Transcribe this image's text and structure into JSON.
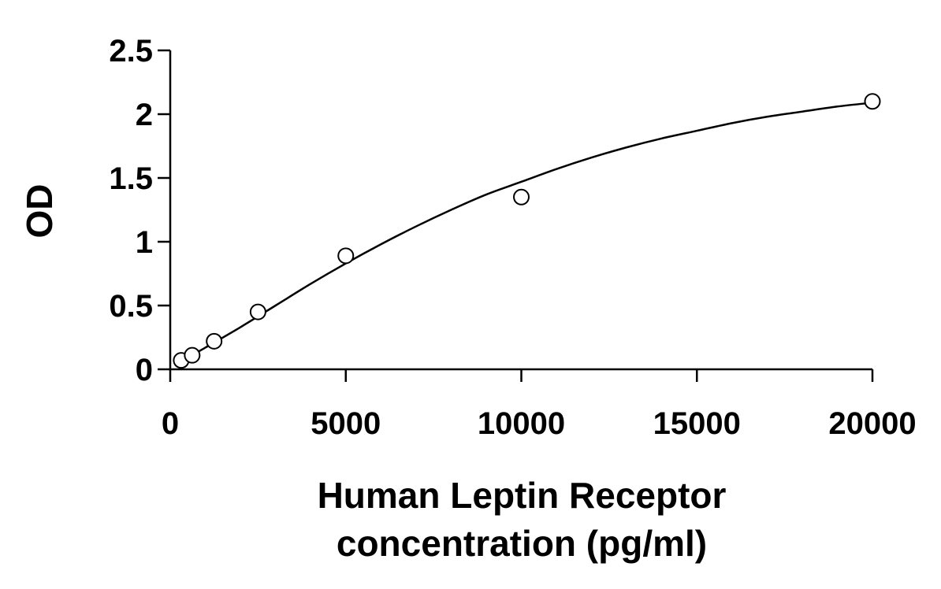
{
  "chart_data": {
    "type": "scatter",
    "title": "",
    "xlabel": [
      "Human Leptin Receptor",
      "concentration (pg/ml)"
    ],
    "ylabel": "OD",
    "xlim": [
      0,
      20000
    ],
    "ylim": [
      0,
      2.5
    ],
    "x_ticks": [
      "0",
      "5000",
      "10000",
      "15000",
      "20000"
    ],
    "y_ticks": [
      "0",
      "0.5",
      "1",
      "1.5",
      "2",
      "2.5"
    ],
    "grid": false,
    "legend": "none",
    "series": [
      {
        "marker": "open-circle",
        "x": [
          312.5,
          625,
          1250,
          2500,
          5000,
          10000,
          20000
        ],
        "y": [
          0.07,
          0.11,
          0.22,
          0.45,
          0.89,
          1.35,
          2.1
        ]
      }
    ],
    "fit_curve": {
      "style": "smooth-line",
      "x": [
        300,
        1000,
        2000,
        3000,
        4000,
        5000,
        6000,
        7000,
        8000,
        9000,
        10000,
        11000,
        12000,
        13000,
        14000,
        15000,
        16000,
        17000,
        18000,
        19000,
        20000
      ],
      "y": [
        0.06,
        0.17,
        0.33,
        0.5,
        0.67,
        0.83,
        0.98,
        1.12,
        1.25,
        1.37,
        1.47,
        1.57,
        1.66,
        1.74,
        1.81,
        1.87,
        1.93,
        1.98,
        2.02,
        2.06,
        2.09
      ]
    },
    "colors": {
      "axis": "#000000",
      "marker_stroke": "#000000",
      "marker_fill": "#ffffff",
      "curve": "#000000"
    }
  }
}
